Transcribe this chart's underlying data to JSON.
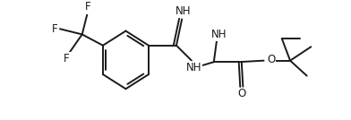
{
  "bg_color": "#ffffff",
  "line_color": "#1a1a1a",
  "line_width": 1.4,
  "font_size": 8.5,
  "figsize": [
    3.92,
    1.34
  ],
  "dpi": 100,
  "xlim": [
    0,
    392
  ],
  "ylim": [
    0,
    134
  ]
}
